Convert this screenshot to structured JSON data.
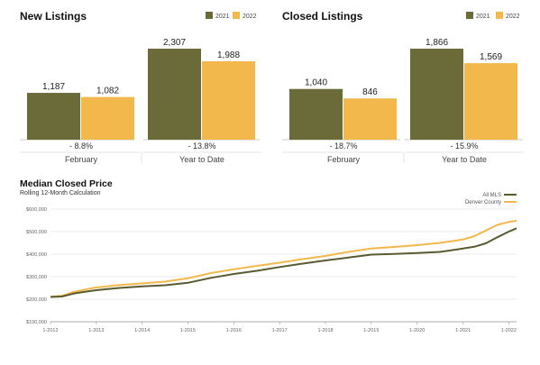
{
  "colors": {
    "y2021": "#6b6b3a",
    "y2022": "#f2b84b",
    "line_all": "#5a5a32",
    "line_denver": "#f2b84b",
    "grid": "#d8d8d8"
  },
  "chart_data": [
    {
      "type": "bar",
      "title": "New Listings",
      "categories": [
        "February",
        "Year to Date"
      ],
      "series": [
        {
          "name": "2021",
          "values": [
            1187,
            2307
          ],
          "labels": [
            "1,187",
            "2,307"
          ]
        },
        {
          "name": "2022",
          "values": [
            1082,
            1988
          ],
          "labels": [
            "1,082",
            "1,988"
          ]
        }
      ],
      "changes": [
        "- 8.8%",
        "- 13.8%"
      ],
      "ylim": [
        0,
        2307
      ]
    },
    {
      "type": "bar",
      "title": "Closed Listings",
      "categories": [
        "February",
        "Year to Date"
      ],
      "series": [
        {
          "name": "2021",
          "values": [
            1040,
            1866
          ],
          "labels": [
            "1,040",
            "1,866"
          ]
        },
        {
          "name": "2022",
          "values": [
            846,
            1569
          ],
          "labels": [
            "846",
            "1,569"
          ]
        }
      ],
      "changes": [
        "- 18.7%",
        "- 15.9%"
      ],
      "ylim": [
        0,
        1866
      ]
    },
    {
      "type": "line",
      "title": "Median Closed Price",
      "subtitle": "Rolling 12-Month Calculation",
      "x_ticks": [
        "1-2012",
        "1-2013",
        "1-2014",
        "1-2015",
        "1-2016",
        "1-2017",
        "1-2018",
        "1-2019",
        "1-2020",
        "1-2021",
        "1-2022"
      ],
      "y_ticks": [
        "$100,000",
        "$200,000",
        "$300,000",
        "$400,000",
        "$500,000",
        "$600,000"
      ],
      "y_tick_values": [
        100000,
        200000,
        300000,
        400000,
        500000,
        600000
      ],
      "ylim": [
        100000,
        600000
      ],
      "xlim": [
        2012.0,
        2022.17
      ],
      "series": [
        {
          "name": "All MLS",
          "x": [
            2012.0,
            2012.25,
            2012.5,
            2012.75,
            2013.0,
            2013.5,
            2014.0,
            2014.5,
            2015.0,
            2015.5,
            2016.0,
            2016.5,
            2017.0,
            2017.5,
            2018.0,
            2018.5,
            2019.0,
            2019.5,
            2020.0,
            2020.5,
            2021.0,
            2021.25,
            2021.5,
            2021.75,
            2022.0,
            2022.17
          ],
          "y": [
            210000,
            212000,
            225000,
            233000,
            240000,
            250000,
            257000,
            262000,
            273000,
            295000,
            312000,
            326000,
            343000,
            358000,
            372000,
            385000,
            398000,
            401000,
            405000,
            410000,
            425000,
            433000,
            448000,
            475000,
            500000,
            515000
          ]
        },
        {
          "name": "Denver County",
          "x": [
            2012.0,
            2012.25,
            2012.5,
            2012.75,
            2013.0,
            2013.5,
            2014.0,
            2014.5,
            2015.0,
            2015.5,
            2016.0,
            2016.5,
            2017.0,
            2017.5,
            2018.0,
            2018.5,
            2019.0,
            2019.5,
            2020.0,
            2020.5,
            2021.0,
            2021.25,
            2021.5,
            2021.75,
            2022.0,
            2022.17
          ],
          "y": [
            211000,
            215000,
            232000,
            243000,
            252000,
            263000,
            270000,
            278000,
            293000,
            316000,
            333000,
            348000,
            362000,
            378000,
            392000,
            410000,
            425000,
            432000,
            440000,
            450000,
            465000,
            480000,
            505000,
            530000,
            543000,
            548000
          ]
        }
      ]
    }
  ]
}
